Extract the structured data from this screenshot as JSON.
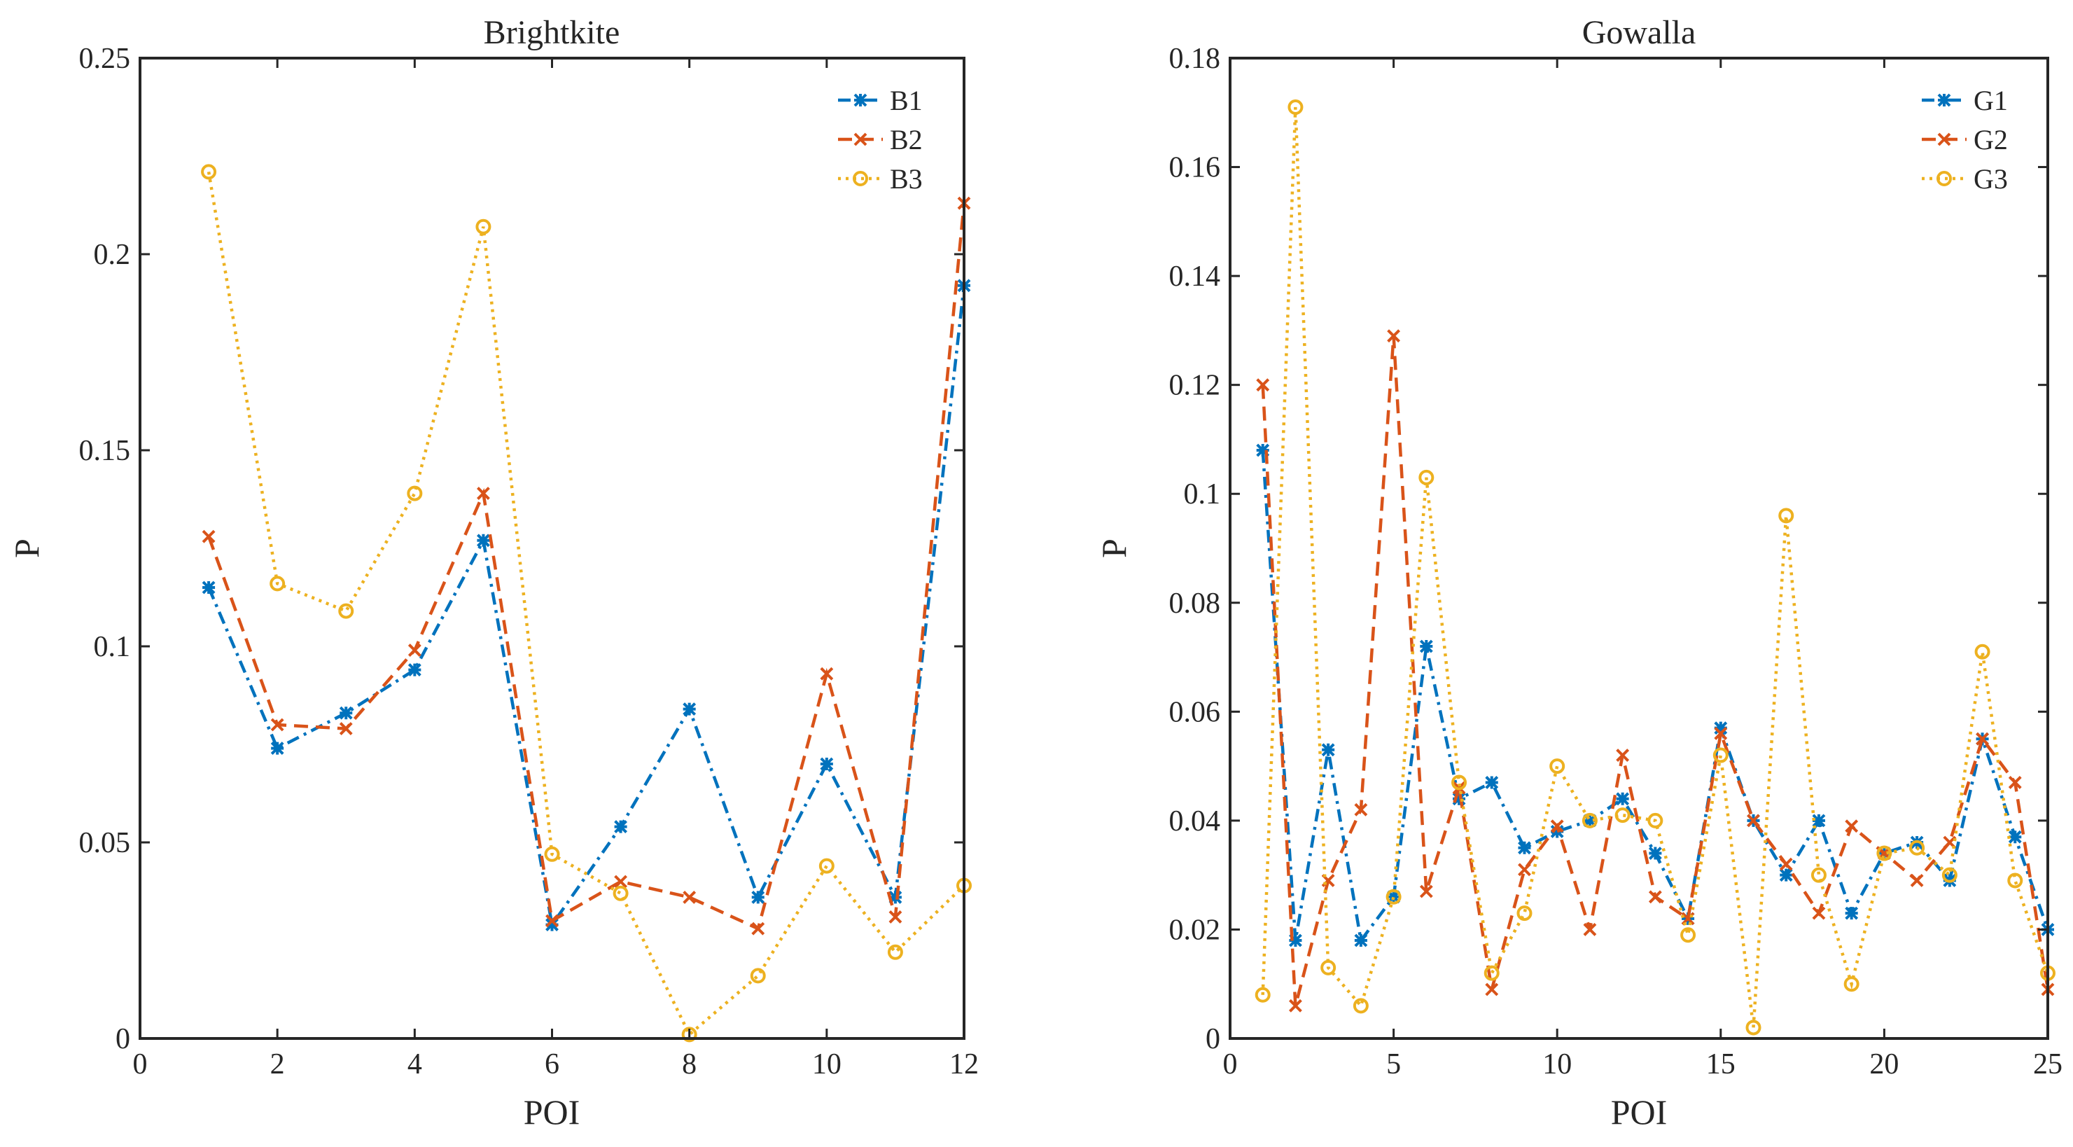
{
  "chart_data": [
    {
      "type": "line",
      "title": "Brightkite",
      "xlabel": "POI",
      "ylabel": "P",
      "xlim": [
        0,
        12
      ],
      "ylim": [
        0,
        0.25
      ],
      "xticks": [
        0,
        2,
        4,
        6,
        8,
        10,
        12
      ],
      "xtick_labels": [
        "0",
        "2",
        "4",
        "6",
        "8",
        "10",
        "12"
      ],
      "yticks": [
        0,
        0.05,
        0.1,
        0.15,
        0.2,
        0.25
      ],
      "ytick_labels": [
        "0",
        "0.05",
        "0.1",
        "0.15",
        "0.2",
        "0.25"
      ],
      "legend_position": "top-right",
      "x": [
        1,
        2,
        3,
        4,
        5,
        6,
        7,
        8,
        9,
        10,
        11,
        12
      ],
      "series": [
        {
          "name": "B1",
          "color": "#0072BD",
          "line": "dash-dot",
          "marker": "asterisk",
          "values": [
            0.115,
            0.074,
            0.083,
            0.094,
            0.127,
            0.029,
            0.054,
            0.084,
            0.036,
            0.07,
            0.036,
            0.192
          ]
        },
        {
          "name": "B2",
          "color": "#D95319",
          "line": "dashed",
          "marker": "x",
          "values": [
            0.128,
            0.08,
            0.079,
            0.099,
            0.139,
            0.03,
            0.04,
            0.036,
            0.028,
            0.093,
            0.031,
            0.213
          ]
        },
        {
          "name": "B3",
          "color": "#EDB120",
          "line": "dotted",
          "marker": "circle",
          "values": [
            0.221,
            0.116,
            0.109,
            0.139,
            0.207,
            0.047,
            0.037,
            0.001,
            0.016,
            0.044,
            0.022,
            0.039
          ]
        }
      ]
    },
    {
      "type": "line",
      "title": "Gowalla",
      "xlabel": "POI",
      "ylabel": "P",
      "xlim": [
        0,
        25
      ],
      "ylim": [
        0,
        0.18
      ],
      "xticks": [
        0,
        5,
        10,
        15,
        20,
        25
      ],
      "xtick_labels": [
        "0",
        "5",
        "10",
        "15",
        "20",
        "25"
      ],
      "yticks": [
        0,
        0.02,
        0.04,
        0.06,
        0.08,
        0.1,
        0.12,
        0.14,
        0.16,
        0.18
      ],
      "ytick_labels": [
        "0",
        "0.02",
        "0.04",
        "0.06",
        "0.08",
        "0.1",
        "0.12",
        "0.14",
        "0.16",
        "0.18"
      ],
      "legend_position": "top-right",
      "x": [
        1,
        2,
        3,
        4,
        5,
        6,
        7,
        8,
        9,
        10,
        11,
        12,
        13,
        14,
        15,
        16,
        17,
        18,
        19,
        20,
        21,
        22,
        23,
        24,
        25
      ],
      "series": [
        {
          "name": "G1",
          "color": "#0072BD",
          "line": "dash-dot",
          "marker": "asterisk",
          "values": [
            0.108,
            0.018,
            0.053,
            0.018,
            0.026,
            0.072,
            0.044,
            0.047,
            0.035,
            0.038,
            0.04,
            0.044,
            0.034,
            0.022,
            0.057,
            0.04,
            0.03,
            0.04,
            0.023,
            0.034,
            0.036,
            0.029,
            0.055,
            0.037,
            0.02
          ]
        },
        {
          "name": "G2",
          "color": "#D95319",
          "line": "dashed",
          "marker": "x",
          "values": [
            0.12,
            0.006,
            0.029,
            0.042,
            0.129,
            0.027,
            0.046,
            0.009,
            0.031,
            0.039,
            0.02,
            0.052,
            0.026,
            0.022,
            0.056,
            0.04,
            0.032,
            0.023,
            0.039,
            0.034,
            0.029,
            0.036,
            0.055,
            0.047,
            0.009
          ]
        },
        {
          "name": "G3",
          "color": "#EDB120",
          "line": "dotted",
          "marker": "circle",
          "values": [
            0.008,
            0.171,
            0.013,
            0.006,
            0.026,
            0.103,
            0.047,
            0.012,
            0.023,
            0.05,
            0.04,
            0.041,
            0.04,
            0.019,
            0.052,
            0.002,
            0.096,
            0.03,
            0.01,
            0.034,
            0.035,
            0.03,
            0.071,
            0.029,
            0.012
          ]
        }
      ]
    }
  ]
}
